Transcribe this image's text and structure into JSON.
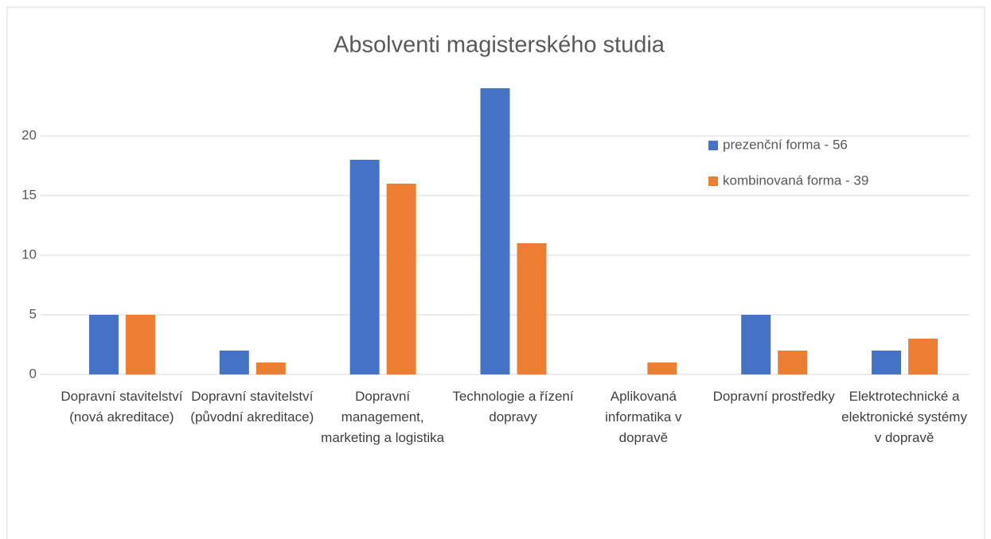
{
  "chart_data": {
    "type": "bar",
    "title": "Absolventi magisterského studia",
    "categories": [
      "Dopravní stavitelství (nová akreditace)",
      "Dopravní stavitelství (původní akreditace)",
      "Dopravní management, marketing a logistika",
      "Technologie a řízení dopravy",
      "Aplikovaná informatika v dopravě",
      "Dopravní prostředky",
      "Elektrotechnické a elektronické systémy v dopravě"
    ],
    "series": [
      {
        "name": "prezenční forma - 56",
        "color": "#4472c4",
        "values": [
          5,
          2,
          18,
          24,
          0,
          5,
          2
        ]
      },
      {
        "name": "kombinovaná forma - 39",
        "color": "#ed7d31",
        "values": [
          5,
          1,
          16,
          11,
          1,
          2,
          3
        ]
      }
    ],
    "ylim": [
      0,
      25
    ],
    "yticks": [
      0,
      5,
      10,
      15,
      20
    ],
    "grid": true,
    "legend": "right"
  }
}
